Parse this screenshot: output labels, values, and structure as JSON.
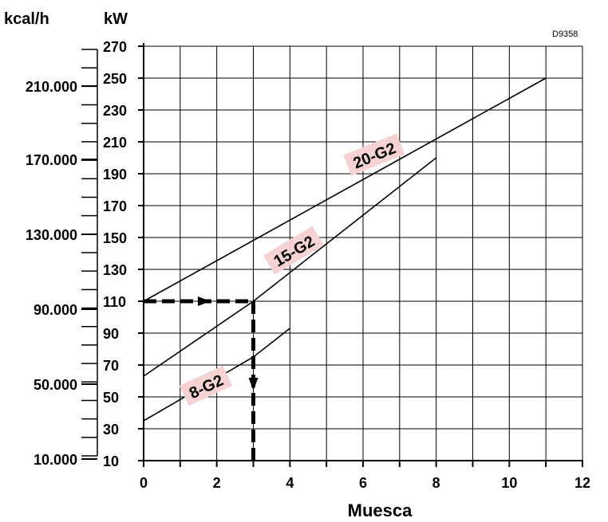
{
  "chart_data": {
    "type": "line",
    "code": "D9358",
    "xlabel": "Muesca",
    "ylabel": "kW",
    "ylabel_secondary": "kcal/h",
    "xlim": [
      0,
      12
    ],
    "ylim": [
      10,
      270
    ],
    "x_ticks": [
      0,
      2,
      4,
      6,
      8,
      10,
      12
    ],
    "y_ticks": [
      10,
      30,
      50,
      70,
      90,
      110,
      130,
      150,
      170,
      190,
      210,
      230,
      250,
      270
    ],
    "secondary_ticks": [
      "210.000",
      "170.000",
      "130.000",
      "90.000",
      "50.000",
      "10.000"
    ],
    "secondary_tick_kw": [
      245,
      199,
      152,
      105,
      58,
      11
    ],
    "grid": true,
    "series": [
      {
        "name": "20-G2",
        "x": [
          0,
          11
        ],
        "y": [
          110,
          250
        ],
        "label_at": [
          6.3,
          202
        ],
        "label_angle": -22
      },
      {
        "name": "15-G2",
        "x": [
          0,
          3,
          8
        ],
        "y": [
          63,
          110,
          200
        ],
        "label_at": [
          4.1,
          142
        ],
        "label_angle": -31
      },
      {
        "name": "8-G2",
        "x": [
          0,
          3,
          4
        ],
        "y": [
          35,
          75,
          93
        ],
        "label_at": [
          1.7,
          57
        ],
        "label_angle": -25
      }
    ],
    "example": {
      "from_x": 0,
      "y": 110,
      "to_x": 3,
      "down_to_y": 10
    }
  }
}
